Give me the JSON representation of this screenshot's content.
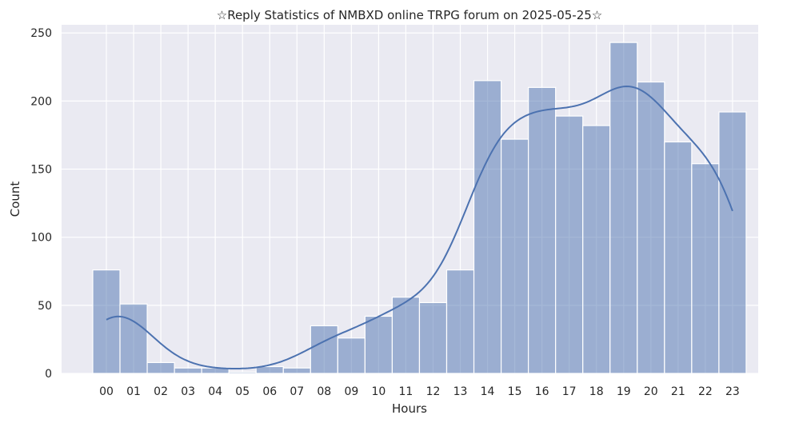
{
  "chart_data": {
    "type": "bar",
    "title": "☆Reply Statistics of NMBXD online TRPG forum on 2025-05-25☆",
    "xlabel": "Hours",
    "ylabel": "Count",
    "categories": [
      "00",
      "01",
      "02",
      "03",
      "04",
      "05",
      "06",
      "07",
      "08",
      "09",
      "10",
      "11",
      "12",
      "13",
      "14",
      "15",
      "16",
      "17",
      "18",
      "19",
      "20",
      "21",
      "22",
      "23"
    ],
    "values": [
      76,
      51,
      8,
      4,
      4,
      1,
      5,
      4,
      35,
      26,
      42,
      56,
      52,
      76,
      215,
      172,
      210,
      189,
      182,
      243,
      214,
      170,
      154,
      192
    ],
    "yticks": [
      0,
      50,
      100,
      150,
      200,
      250
    ],
    "ylim": [
      0,
      256
    ],
    "grid": true,
    "kde": true,
    "colors": {
      "bar": "#4c72b0",
      "background": "#eaeaf2",
      "grid": "#ffffff"
    }
  }
}
